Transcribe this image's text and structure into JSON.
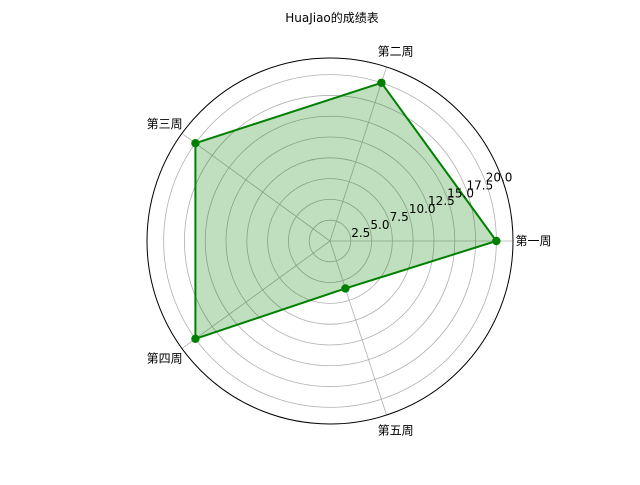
{
  "chart_data": {
    "type": "radar",
    "title": "HuaJiao的成绩表",
    "categories": [
      "第一周",
      "第二周",
      "第三周",
      "第四周",
      "第五周"
    ],
    "series": [
      {
        "values": [
          20,
          20,
          20,
          20,
          6
        ],
        "color": "#008000"
      }
    ],
    "rlim": [
      0,
      22
    ],
    "radial_ticks": [
      2.5,
      5.0,
      7.5,
      10.0,
      12.5,
      15.0,
      17.5,
      20.0
    ],
    "radial_tick_labels": [
      "2.5",
      "5.0",
      "7.5",
      "10.0",
      "12.5",
      "15.0",
      "17.5",
      "20.0"
    ],
    "grid": true,
    "start_angle_deg": 0,
    "fill_color": "#008000",
    "grid_color": "#b0b0b0"
  }
}
